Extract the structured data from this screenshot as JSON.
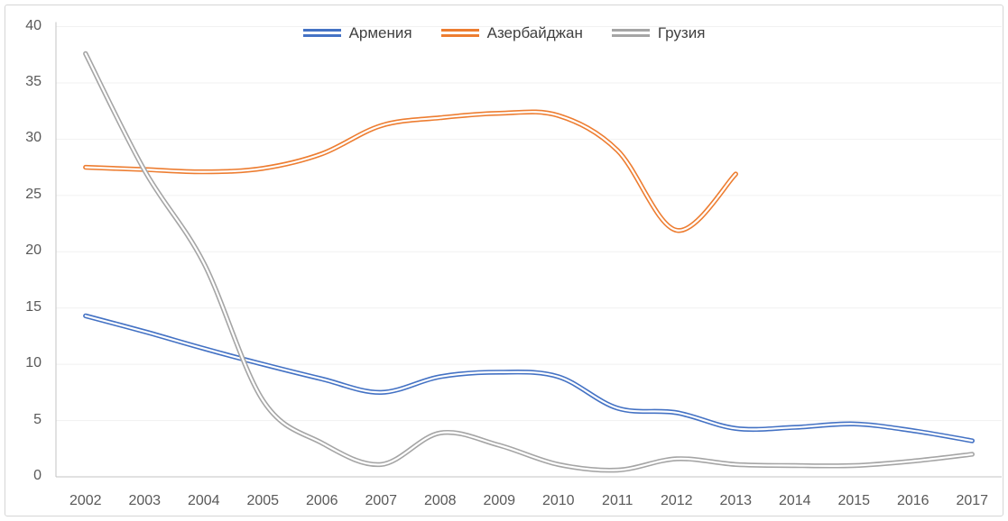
{
  "chart_data": {
    "type": "line",
    "title": "",
    "xlabel": "",
    "ylabel": "",
    "categories": [
      "2002",
      "2003",
      "2004",
      "2005",
      "2006",
      "2007",
      "2008",
      "2009",
      "2010",
      "2011",
      "2012",
      "2013",
      "2014",
      "2015",
      "2016",
      "2017"
    ],
    "series": [
      {
        "name": "Армения",
        "color": "#4472C4",
        "values": [
          14.3,
          12.9,
          11.4,
          10.0,
          8.7,
          7.5,
          8.9,
          9.3,
          8.9,
          6.1,
          5.7,
          4.3,
          4.4,
          4.7,
          4.1,
          3.2
        ]
      },
      {
        "name": "Азербайджан",
        "color": "#ED7D31",
        "values": [
          27.5,
          27.3,
          27.1,
          27.4,
          28.7,
          31.2,
          31.9,
          32.3,
          32.1,
          29.0,
          21.9,
          26.9,
          null,
          null,
          null,
          null
        ]
      },
      {
        "name": "Грузия",
        "color": "#A5A5A5",
        "values": [
          37.6,
          27.2,
          19.0,
          6.8,
          3.0,
          1.1,
          3.9,
          2.8,
          1.1,
          0.6,
          1.6,
          1.1,
          1.0,
          1.0,
          1.4,
          2.0
        ]
      }
    ],
    "ylim": [
      0,
      40
    ],
    "y_tick_labels": [
      "0",
      "5",
      "10",
      "15",
      "20",
      "25",
      "30",
      "35",
      "40"
    ],
    "grid": true,
    "smooth": true,
    "line_style": "double",
    "legend_position": "top"
  },
  "colors": {
    "gridline": "#f1f1f1",
    "axis_line": "#c3c3c3",
    "axis_text": "#595959",
    "legend_text": "#404040",
    "frame_border": "#d6d6d6",
    "background": "#ffffff"
  }
}
